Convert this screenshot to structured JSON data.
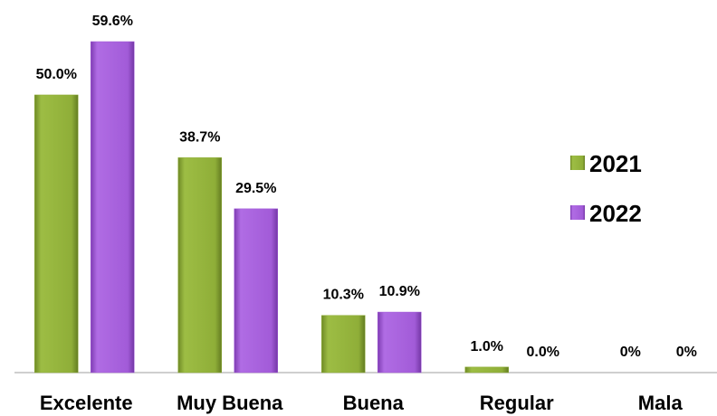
{
  "chart_data": {
    "type": "bar",
    "categories": [
      "Excelente",
      "Muy Buena",
      "Buena",
      "Regular",
      "Mala"
    ],
    "series": [
      {
        "name": "2021",
        "color": "#8fae38",
        "values": [
          50.0,
          38.7,
          10.3,
          1.0,
          0
        ],
        "value_labels": [
          "50.0%",
          "38.7%",
          "10.3%",
          "1.0%",
          "0%"
        ]
      },
      {
        "name": "2022",
        "color": "#a25bd8",
        "values": [
          59.6,
          29.5,
          10.9,
          0.0,
          0
        ],
        "value_labels": [
          "59.6%",
          "29.5%",
          "10.9%",
          "0.0%",
          "0%"
        ]
      }
    ],
    "legend": "right"
  }
}
